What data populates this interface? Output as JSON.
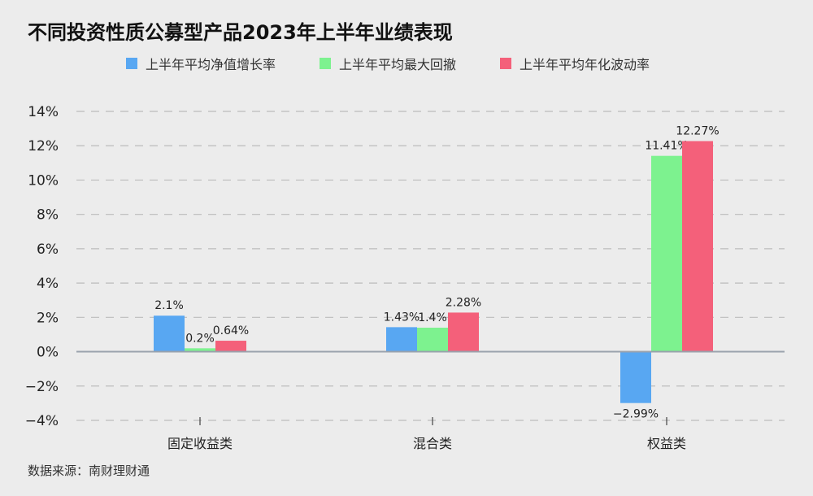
{
  "title": "不同投资性质公募型产品2023年上半年业绩表现",
  "source": "数据来源：南财理财通",
  "colors": {
    "background": "#ececec",
    "grid": "#bcbcbc",
    "zero_line": "#9aa2ad"
  },
  "chart_data": {
    "type": "bar",
    "title": "不同投资性质公募型产品2023年上半年业绩表现",
    "xlabel": "",
    "ylabel": "",
    "categories": [
      "固定收益类",
      "混合类",
      "权益类"
    ],
    "ylim": [
      -4,
      14
    ],
    "yticks": [
      14,
      12,
      10,
      8,
      6,
      4,
      2,
      0,
      -2,
      -4
    ],
    "ytick_labels": [
      "14%",
      "12%",
      "10%",
      "8%",
      "6%",
      "4%",
      "2%",
      "0%",
      "−2%",
      "−4%"
    ],
    "grid": true,
    "legend_position": "top",
    "series": [
      {
        "name": "上半年平均净值增长率",
        "color": "#58a7f2",
        "values": [
          2.1,
          1.43,
          -2.99
        ],
        "labels": [
          "2.1%",
          "1.43%",
          "−2.99%"
        ]
      },
      {
        "name": "上半年平均最大回撤",
        "color": "#7df28f",
        "values": [
          0.2,
          1.4,
          11.41
        ],
        "labels": [
          "0.2%",
          "1.4%",
          "11.41%"
        ]
      },
      {
        "name": "上半年平均年化波动率",
        "color": "#f4607a",
        "values": [
          0.64,
          2.28,
          12.27
        ],
        "labels": [
          "0.64%",
          "2.28%",
          "12.27%"
        ]
      }
    ]
  }
}
